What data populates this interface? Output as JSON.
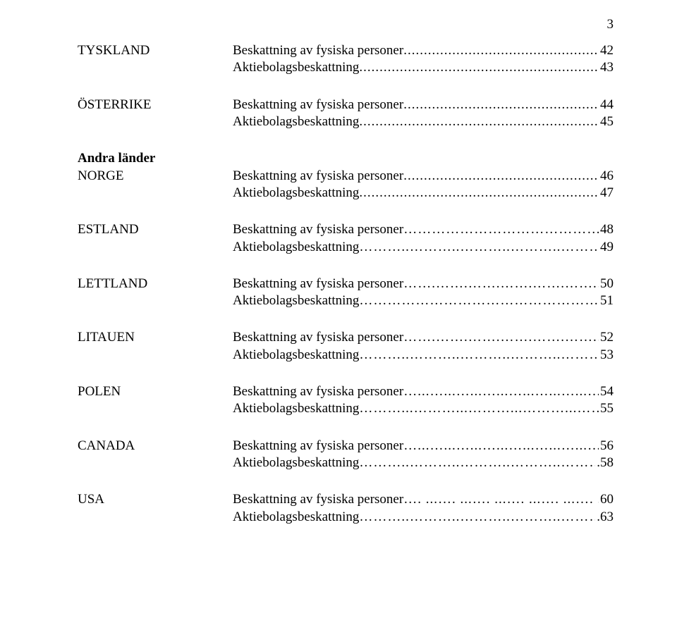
{
  "page_number": "3",
  "groups": [
    {
      "rows": [
        {
          "label": "TYSKLAND",
          "label_bold": false,
          "entry": "Beskattning av fysiska personer",
          "leader": "...",
          "page": "42"
        },
        {
          "label": "",
          "label_bold": false,
          "entry": "Aktiebolagsbeskattning",
          "leader": "...",
          "page": "43"
        }
      ]
    },
    {
      "rows": [
        {
          "label": "ÖSTERRIKE",
          "label_bold": false,
          "entry": "Beskattning av fysiska personer",
          "leader": "...",
          "page": "44"
        },
        {
          "label": "",
          "label_bold": false,
          "entry": "Aktiebolagsbeskattning",
          "leader": "...",
          "page": "45"
        }
      ]
    },
    {
      "rows": [
        {
          "label": "Andra länder",
          "label_bold": true,
          "entry": "",
          "leader": "",
          "page": ""
        },
        {
          "label": "NORGE",
          "label_bold": false,
          "entry": "Beskattning av fysiska personer",
          "leader": "....",
          "page": " 46"
        },
        {
          "label": "",
          "label_bold": false,
          "entry": "Aktiebolagsbeskattning",
          "leader": "...",
          "page": "47"
        }
      ]
    },
    {
      "rows": [
        {
          "label": "ESTLAND",
          "label_bold": false,
          "entry": "Beskattning av fysiska personer",
          "leader": "……",
          "page": " 48"
        },
        {
          "label": "",
          "label_bold": false,
          "entry": "Aktiebolagsbeskattning",
          "leader": "………..",
          "page": "49"
        }
      ]
    },
    {
      "rows": [
        {
          "label": "LETTLAND",
          "label_bold": false,
          "entry": "Beskattning av fysiska personer",
          "leader": "…….",
          "page": "50"
        },
        {
          "label": "",
          "label_bold": false,
          "entry": "Aktiebolagsbeskattning",
          "leader": "………",
          "page": "51"
        }
      ]
    },
    {
      "rows": [
        {
          "label": "LITAUEN",
          "label_bold": false,
          "entry": "Beskattning av fysiska personer",
          "leader": "…….",
          "page": "52"
        },
        {
          "label": "",
          "label_bold": false,
          "entry": "Aktiebolagsbeskattning",
          "leader": "………..",
          "page": "53"
        }
      ]
    },
    {
      "rows": [
        {
          "label": "POLEN",
          "label_bold": false,
          "entry": "Beskattning av fysiska personer",
          "leader": "…...",
          "page": "54"
        },
        {
          "label": "",
          "label_bold": false,
          "entry": "Aktiebolagsbeskattning",
          "leader": "………...",
          "page": " 55"
        }
      ]
    },
    {
      "rows": [
        {
          "label": "CANADA",
          "label_bold": false,
          "entry": "Beskattning av fysiska personer",
          "leader": "…...",
          "page": "56"
        },
        {
          "label": "",
          "label_bold": false,
          "entry": "Aktiebolagsbeskattning",
          "leader": "………..",
          "page": ".58"
        }
      ]
    },
    {
      "rows": [
        {
          "label": "USA",
          "label_bold": false,
          "entry": "Beskattning av fysiska personer",
          "leader": "…. ...",
          "page": "60"
        },
        {
          "label": "",
          "label_bold": false,
          "entry": "Aktiebolagsbeskattning",
          "leader": "………..",
          "page": ".63"
        }
      ]
    }
  ]
}
